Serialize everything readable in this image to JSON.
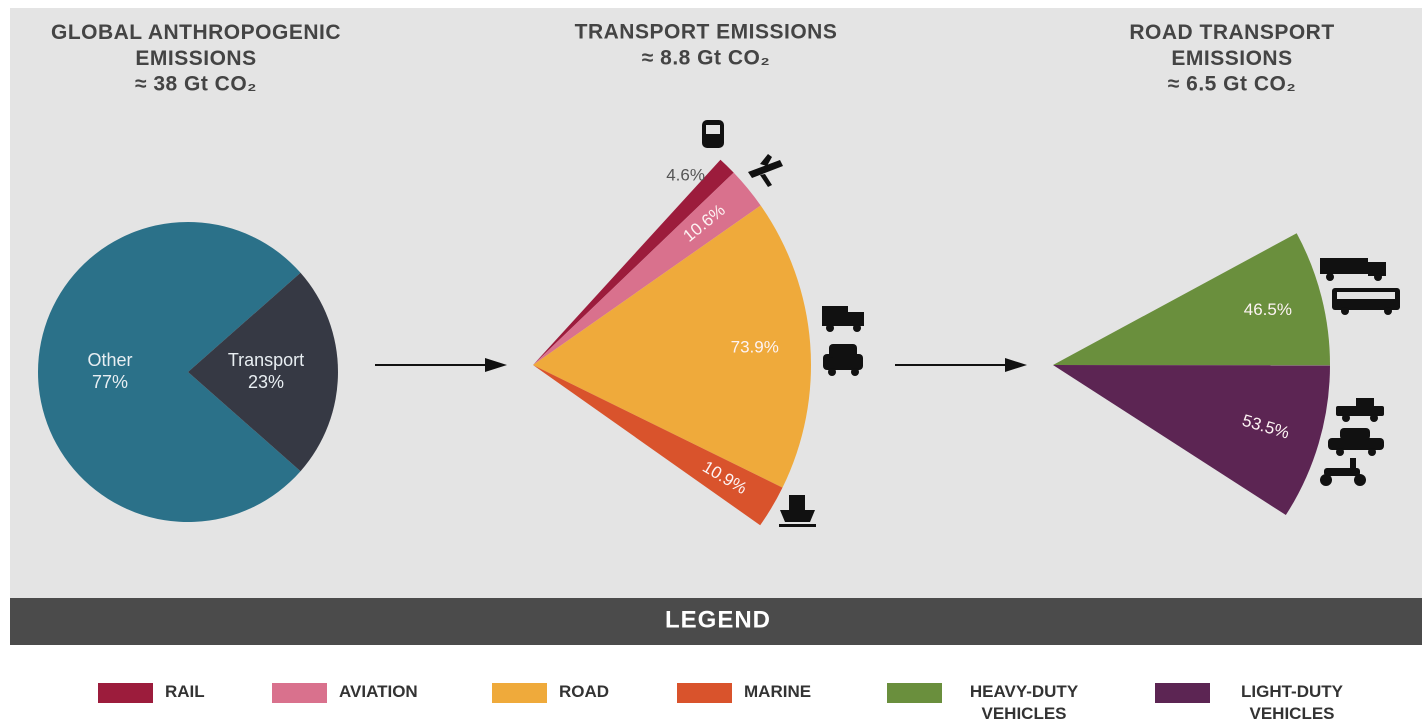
{
  "chart_data": [
    {
      "type": "pie",
      "title": "GLOBAL ANTHROPOGENIC EMISSIONS",
      "subtitle": "≈ 38 Gt CO₂",
      "categories": [
        "Other",
        "Transport"
      ],
      "values": [
        77,
        23
      ],
      "value_labels": [
        "77%",
        "23%"
      ],
      "colors": [
        "#2b7189",
        "#363944"
      ]
    },
    {
      "type": "fan",
      "title": "TRANSPORT EMISSIONS",
      "subtitle": "≈ 8.8 Gt CO₂",
      "categories": [
        "RAIL",
        "AVIATION",
        "ROAD",
        "MARINE"
      ],
      "values": [
        4.6,
        10.6,
        73.9,
        10.9
      ],
      "value_labels": [
        "4.6%",
        "10.6%",
        "73.9%",
        "10.9%"
      ],
      "colors": [
        "#9c1c3c",
        "#d9718d",
        "#efaa3b",
        "#d9532c"
      ]
    },
    {
      "type": "fan",
      "title": "ROAD TRANSPORT EMISSIONS",
      "subtitle": "≈ 6.5 Gt CO₂",
      "categories": [
        "HEAVY-DUTY VEHICLES",
        "LIGHT-DUTY VEHICLES"
      ],
      "values": [
        46.5,
        53.5
      ],
      "value_labels": [
        "46.5%",
        "53.5%"
      ],
      "colors": [
        "#6a8f3d",
        "#5c2553"
      ]
    }
  ],
  "legend": {
    "title": "LEGEND"
  }
}
